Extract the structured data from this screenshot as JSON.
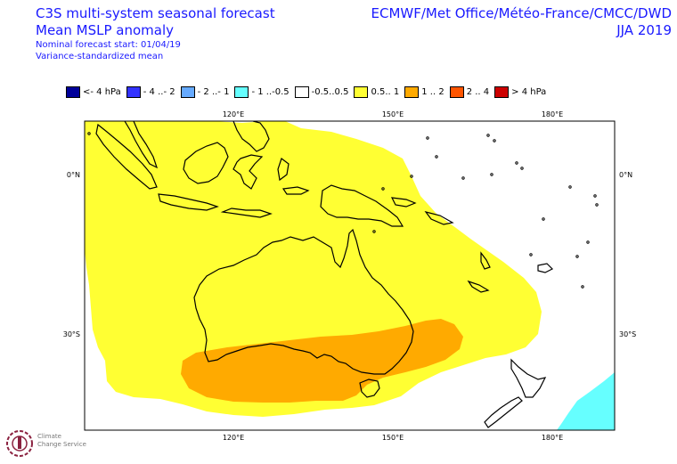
{
  "header": {
    "line1": "C3S multi-system seasonal forecast",
    "line2": "Mean MSLP anomaly",
    "line3": "Nominal forecast start: 01/04/19",
    "line4": "Variance-standardized mean",
    "right1": "ECMWF/Met Office/Météo-France/CMCC/DWD",
    "right2": "JJA 2019"
  },
  "legend": [
    {
      "label": "<- 4 hPa",
      "color": "#000099"
    },
    {
      "label": "- 4 ..- 2",
      "color": "#3333ff"
    },
    {
      "label": "- 2 ..- 1",
      "color": "#66aaff"
    },
    {
      "label": "- 1 ..-0.5",
      "color": "#66ffff"
    },
    {
      "label": "-0.5..0.5",
      "color": "#ffffff"
    },
    {
      "label": "0.5.. 1",
      "color": "#ffff33"
    },
    {
      "label": "1 .. 2",
      "color": "#ffaa00"
    },
    {
      "label": "2 .. 4",
      "color": "#ff5500"
    },
    {
      "label": ">  4 hPa",
      "color": "#cc0000"
    }
  ],
  "axes": {
    "top_lon": [
      "120°E",
      "150°E",
      "180°E"
    ],
    "bottom_lon": [
      "120°E",
      "150°E",
      "180°E"
    ],
    "left_lat": [
      "0°N",
      "30°S"
    ],
    "right_lat": [
      "0°N",
      "30°S"
    ]
  },
  "logo": {
    "line1": "Climate",
    "line2": "Change Service"
  }
}
